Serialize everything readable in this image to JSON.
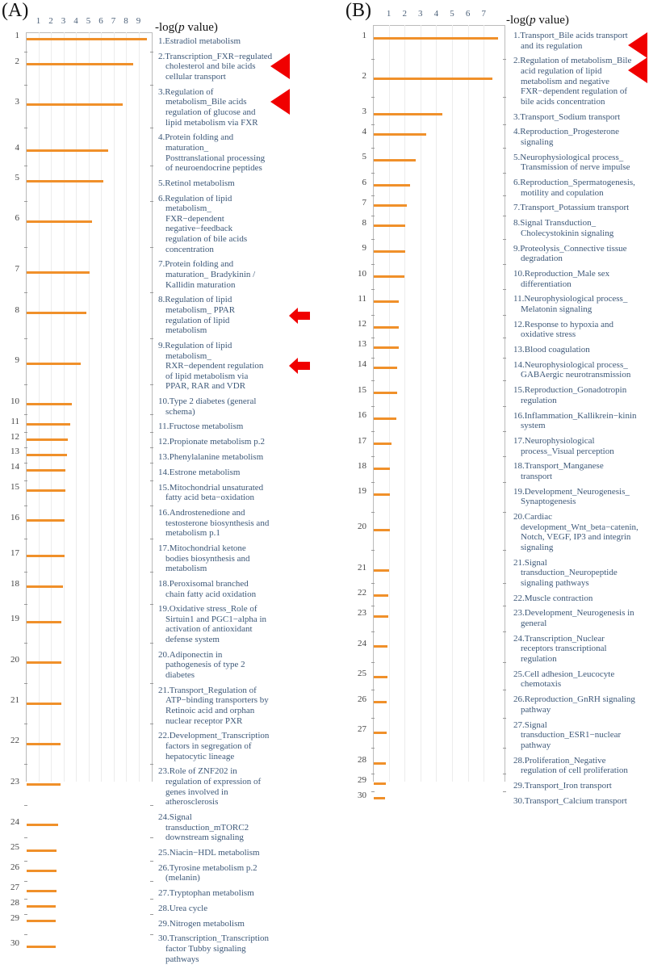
{
  "chart_data": [
    {
      "type": "bar",
      "panel": "(A)",
      "orientation": "horizontal",
      "xlabel": "-log(p value)",
      "xticks": [
        1,
        2,
        3,
        4,
        5,
        6,
        7,
        8,
        9
      ],
      "xlim": [
        0,
        10
      ],
      "grid": true,
      "bar_color": "#f0902a",
      "categories": [
        "1.Estradiol metabolism",
        "2.Transcription_FXR−regulated cholesterol and bile acids cellular transport",
        "3.Regulation of metabolism_Bile acids regulation of glucose and lipid metabolism via FXR",
        "4.Protein folding and maturation_ Posttranslational processing of neuroendocrine peptides",
        "5.Retinol metabolism",
        "6.Regulation of lipid metabolism_ FXR−dependent negative−feedback regulation of bile acids concentration",
        "7.Protein folding and maturation_ Bradykinin / Kallidin maturation",
        "8.Regulation of lipid metabolism_ PPAR regulation of lipid metabolism",
        "9.Regulation of lipid metabolism_ RXR−dependent regulation of lipid metabolism via PPAR, RAR and VDR",
        "10.Type 2 diabetes (general schema)",
        "11.Fructose metabolism",
        "12.Propionate metabolism p.2",
        "13.Phenylalanine metabolism",
        "14.Estrone metabolism",
        "15.Mitochondrial unsaturated fatty acid beta−oxidation",
        "16.Androstenedione and testosterone biosynthesis and metabolism p.1",
        "17.Mitochondrial ketone bodies biosynthesis and metabolism",
        "18.Peroxisomal branched chain fatty acid oxidation",
        "19.Oxidative stress_Role of Sirtuin1 and PGC1−alpha in activation of antioxidant defense system",
        "20.Adiponectin in pathogenesis of type 2 diabetes",
        "21.Transport_Regulation of ATP−binding transporters by Retinoic acid and orphan nuclear receptor PXR",
        "22.Development_Transcription factors in segregation of hepatocytic lineage",
        "23.Role of ZNF202 in regulation of expression of genes involved in atherosclerosis",
        "24.Signal transduction_mTORC2 downstream signaling",
        "25.Niacin−HDL metabolism",
        "26.Tyrosine metabolism p.2 (melanin)",
        "27.Tryptophan metabolism",
        "28.Urea cycle",
        "29.Nitrogen metabolism",
        "30.Transcription_Transcription factor Tubby signaling pathways"
      ],
      "values": [
        9.6,
        8.5,
        7.7,
        6.5,
        6.1,
        5.2,
        5.0,
        4.8,
        4.3,
        3.6,
        3.5,
        3.3,
        3.2,
        3.1,
        3.1,
        3.0,
        3.0,
        2.9,
        2.8,
        2.8,
        2.8,
        2.7,
        2.7,
        2.5,
        2.4,
        2.4,
        2.4,
        2.3,
        2.3,
        2.3
      ],
      "highlight_triangle": [
        2,
        3
      ],
      "highlight_block_arrow": [
        8,
        9
      ],
      "highlight_color": "#f00000"
    },
    {
      "type": "bar",
      "panel": "(B)",
      "orientation": "horizontal",
      "xlabel": "-log(p value)",
      "xticks": [
        1,
        2,
        3,
        4,
        5,
        6,
        7
      ],
      "xlim": [
        0,
        8
      ],
      "grid": true,
      "bar_color": "#f0902a",
      "categories": [
        "1.Transport_Bile acids transport and its regulation",
        "2.Regulation of metabolism_Bile acid regulation of lipid metabolism and negative FXR−dependent regulation of bile acids concentration",
        "3.Transport_Sodium transport",
        "4.Reproduction_Progesterone signaling",
        "5.Neurophysiological process_ Transmission of nerve impulse",
        "6.Reproduction_Spermatogenesis, motility and copulation",
        "7.Transport_Potassium transport",
        "8.Signal Transduction_ Cholecystokinin signaling",
        "9.Proteolysis_Connective tissue degradation",
        "10.Reproduction_Male sex differentiation",
        "11.Neurophysiological process_ Melatonin signaling",
        "12.Response to hypoxia and oxidative stress",
        "13.Blood coagulation",
        "14.Neurophysiological process_ GABAergic neurotransmission",
        "15.Reproduction_Gonadotropin regulation",
        "16.Inflammation_Kallikrein−kinin system",
        "17.Neurophysiological process_Visual perception",
        "18.Transport_Manganese transport",
        "19.Development_Neurogenesis_ Synaptogenesis",
        "20.Cardiac development_Wnt_beta−catenin, Notch, VEGF, IP3 and integrin signaling",
        "21.Signal transduction_Neuropeptide signaling pathways",
        "22.Muscle contraction",
        "23.Development_Neurogenesis in general",
        "24.Transcription_Nuclear receptors transcriptional regulation",
        "25.Cell adhesion_Leucocyte chemotaxis",
        "26.Reproduction_GnRH signaling pathway",
        "27.Signal transduction_ESR1−nuclear pathway",
        "28.Proliferation_Negative regulation of cell proliferation",
        "29.Transport_Iron transport",
        "30.Transport_Calcium transport"
      ],
      "values": [
        7.85,
        7.5,
        4.35,
        3.3,
        2.65,
        2.3,
        2.1,
        2.0,
        2.0,
        1.95,
        1.6,
        1.6,
        1.6,
        1.5,
        1.5,
        1.45,
        1.1,
        1.0,
        1.0,
        1.0,
        0.95,
        0.9,
        0.9,
        0.85,
        0.85,
        0.8,
        0.8,
        0.75,
        0.75,
        0.7
      ],
      "highlight_triangle": [
        1,
        2
      ],
      "highlight_block_arrow": [],
      "highlight_color": "#f00000"
    }
  ]
}
